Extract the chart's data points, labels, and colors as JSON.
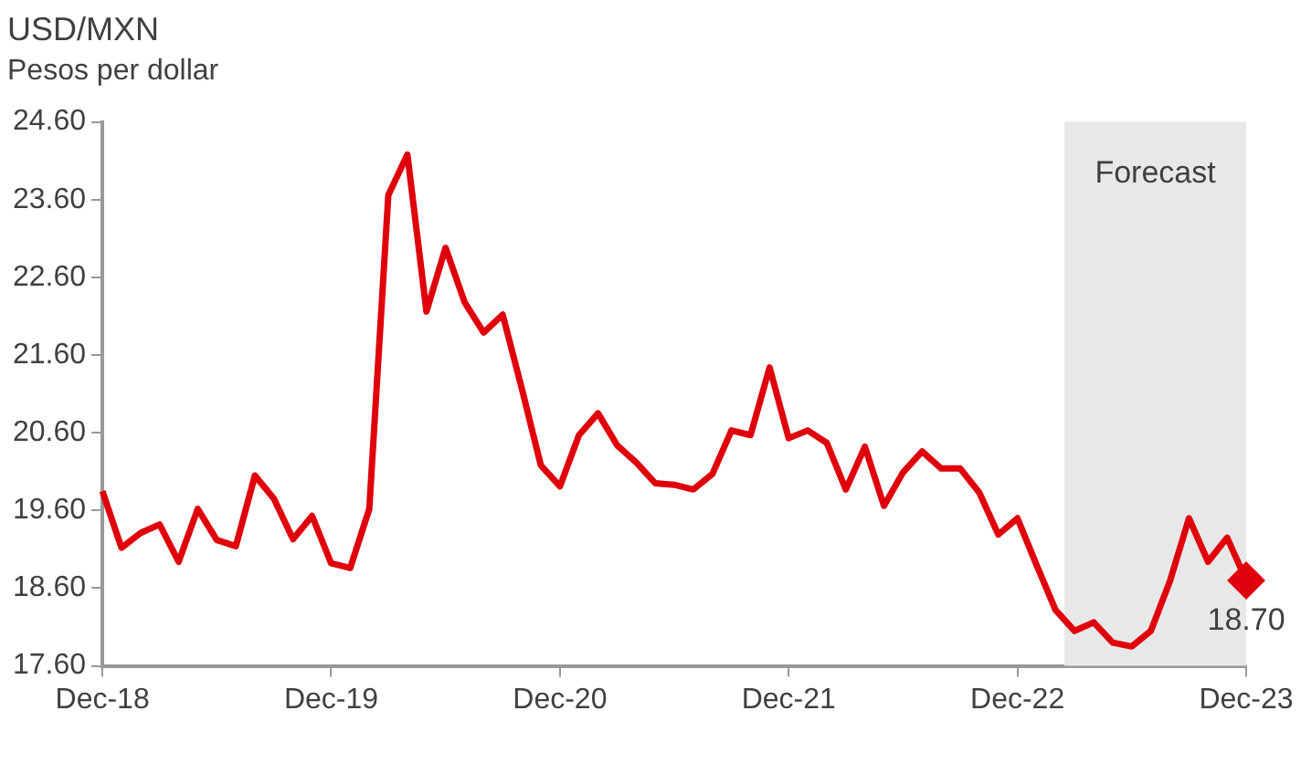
{
  "chart_data": {
    "type": "line",
    "title": "USD/MXN",
    "subtitle": "Pesos per dollar",
    "x": [
      "2018-12",
      "2019-01",
      "2019-02",
      "2019-03",
      "2019-04",
      "2019-05",
      "2019-06",
      "2019-07",
      "2019-08",
      "2019-09",
      "2019-10",
      "2019-11",
      "2019-12",
      "2020-01",
      "2020-02",
      "2020-03",
      "2020-04",
      "2020-05",
      "2020-06",
      "2020-07",
      "2020-08",
      "2020-09",
      "2020-10",
      "2020-11",
      "2020-12",
      "2021-01",
      "2021-02",
      "2021-03",
      "2021-04",
      "2021-05",
      "2021-06",
      "2021-07",
      "2021-08",
      "2021-09",
      "2021-10",
      "2021-11",
      "2021-12",
      "2022-01",
      "2022-02",
      "2022-03",
      "2022-04",
      "2022-05",
      "2022-06",
      "2022-07",
      "2022-08",
      "2022-09",
      "2022-10",
      "2022-11",
      "2022-12",
      "2023-01",
      "2023-02",
      "2023-03",
      "2023-04",
      "2023-05",
      "2023-06",
      "2023-07",
      "2023-08",
      "2023-09",
      "2023-10",
      "2023-11",
      "2023-12"
    ],
    "series": [
      {
        "color": "#e0000b",
        "marker": "none",
        "values": [
          19.85,
          19.12,
          19.31,
          19.42,
          18.94,
          19.62,
          19.22,
          19.14,
          20.05,
          19.75,
          19.23,
          19.53,
          18.92,
          18.86,
          19.62,
          23.66,
          24.18,
          22.16,
          22.98,
          22.28,
          21.89,
          22.12,
          21.17,
          20.18,
          19.91,
          20.57,
          20.85,
          20.44,
          20.22,
          19.95,
          19.93,
          19.87,
          20.07,
          20.63,
          20.57,
          21.44,
          20.53,
          20.63,
          20.47,
          19.87,
          20.42,
          19.66,
          20.09,
          20.36,
          20.14,
          20.14,
          19.83,
          19.29,
          19.5,
          18.9,
          18.32,
          18.05,
          18.16,
          17.9,
          17.85,
          18.05,
          18.69,
          19.5,
          18.94,
          19.25,
          18.7
        ]
      },
      {
        "type": "scatter",
        "color": "#e0000b",
        "marker": "diamond",
        "x": [
          "2023-12"
        ],
        "values": [
          18.7
        ],
        "value_labels": [
          "18.70"
        ]
      }
    ],
    "xlim": [
      "2018-12",
      "2023-12"
    ],
    "xticks": [
      {
        "value": "2018-12",
        "label": "Dec-18"
      },
      {
        "value": "2019-12",
        "label": "Dec-19"
      },
      {
        "value": "2020-12",
        "label": "Dec-20"
      },
      {
        "value": "2021-12",
        "label": "Dec-21"
      },
      {
        "value": "2022-12",
        "label": "Dec-22"
      },
      {
        "value": "2023-12",
        "label": "Dec-23"
      }
    ],
    "ylim": [
      17.6,
      24.6
    ],
    "yticks": [
      {
        "value": 17.6,
        "label": "17.60"
      },
      {
        "value": 18.6,
        "label": "18.60"
      },
      {
        "value": 19.6,
        "label": "19.60"
      },
      {
        "value": 20.6,
        "label": "20.60"
      },
      {
        "value": 21.6,
        "label": "21.60"
      },
      {
        "value": 22.6,
        "label": "22.60"
      },
      {
        "value": 23.6,
        "label": "23.60"
      },
      {
        "value": 24.6,
        "label": "24.60"
      }
    ],
    "bands": [
      {
        "axis": "x",
        "from": "2023-02-15",
        "to": "2023-12",
        "label": "Forecast",
        "color": "#e8e8e8"
      }
    ]
  }
}
